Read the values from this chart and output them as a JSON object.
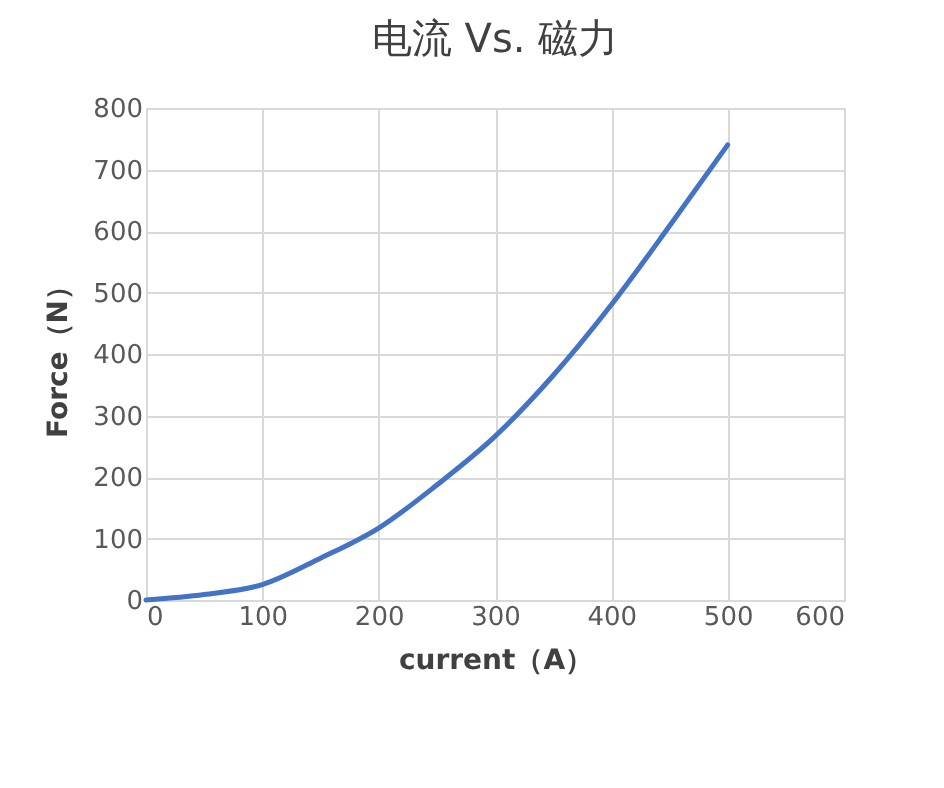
{
  "chart_data": {
    "type": "line",
    "title": "电流 Vs. 磁力",
    "xlabel": "current（A）",
    "ylabel": "Force（N）",
    "x": [
      0,
      50,
      100,
      150,
      200,
      250,
      300,
      350,
      400,
      450,
      500
    ],
    "series": [
      {
        "color": "#4472c4",
        "values": [
          0,
          9,
          25,
          68,
          117,
          187,
          266,
          365,
          480,
          608,
          740
        ]
      }
    ],
    "xlim": [
      0,
      600
    ],
    "xticks": [
      0,
      100,
      200,
      300,
      400,
      500,
      600
    ],
    "ylim": [
      0,
      800
    ],
    "yticks": [
      0,
      100,
      200,
      300,
      400,
      500,
      600,
      700,
      800
    ],
    "grid": true,
    "legend": false,
    "marker": "none",
    "line_style": "solid"
  }
}
